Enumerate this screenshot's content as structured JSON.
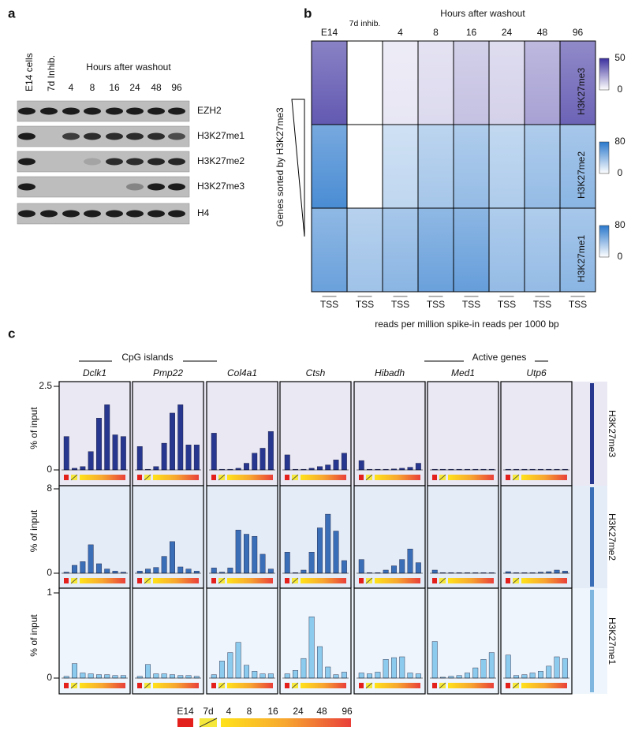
{
  "panel_a": {
    "label": "a",
    "lanes": [
      "E14 cells",
      "7d Inhib."
    ],
    "hours_label": "Hours after washout",
    "hours": [
      4,
      8,
      16,
      24,
      48,
      96
    ],
    "bands": [
      "EZH2",
      "H3K27me1",
      "H3K27me2",
      "H3K27me3",
      "H4"
    ]
  },
  "panel_b": {
    "label": "b",
    "columns": [
      "E14",
      "7d inhib."
    ],
    "hours_label": "Hours after washout",
    "hours": [
      4,
      8,
      16,
      24,
      48,
      96
    ],
    "rows": [
      {
        "name": "H3K27me3",
        "color": "#3b2f9e",
        "scale_ticks": [
          0,
          50
        ]
      },
      {
        "name": "H3K27me2",
        "color": "#2a78cc",
        "scale_ticks": [
          0,
          80
        ]
      },
      {
        "name": "H3K27me1",
        "color": "#2a78cc",
        "scale_ticks": [
          0,
          80
        ]
      }
    ],
    "tss_label": "TSS",
    "x_label": "reads per million spike-in reads per 1000 bp",
    "sort_label": "Genes sorted by H3K27me3"
  },
  "panel_c": {
    "label": "c",
    "groups": [
      "CpG islands",
      "Active genes"
    ],
    "genes": [
      "Dclk1",
      "Pmp22",
      "Col4a1",
      "Ctsh",
      "Hibadh",
      "Med1",
      "Utp6"
    ],
    "legend": [
      "E14",
      "7d",
      "4",
      "8",
      "16",
      "24",
      "48",
      "96"
    ]
  },
  "chart_data": [
    {
      "type": "bar",
      "title": "H3K27me3",
      "ylabel": "% of input",
      "ylim": [
        0,
        2.5
      ],
      "yticks": [
        0,
        2.5
      ],
      "color": "#27378f",
      "background": "#e9e8f3",
      "strip_color": "#27378f",
      "values": [
        [
          1.0,
          0.05,
          0.1,
          0.55,
          1.55,
          1.95,
          1.05,
          1.0
        ],
        [
          0.7,
          0.02,
          0.1,
          0.8,
          1.7,
          1.95,
          0.75,
          0.75
        ],
        [
          1.1,
          0.02,
          0.02,
          0.05,
          0.2,
          0.5,
          0.65,
          1.15
        ],
        [
          0.45,
          0.02,
          0.02,
          0.05,
          0.1,
          0.15,
          0.3,
          0.5
        ],
        [
          0.28,
          0.02,
          0.02,
          0.02,
          0.03,
          0.05,
          0.08,
          0.2
        ],
        [
          0.02,
          0.02,
          0.02,
          0.02,
          0.02,
          0.02,
          0.02,
          0.02
        ],
        [
          0.02,
          0.02,
          0.02,
          0.02,
          0.02,
          0.02,
          0.02,
          0.02
        ]
      ]
    },
    {
      "type": "bar",
      "title": "H3K27me2",
      "ylabel": "% of input",
      "ylim": [
        0,
        8
      ],
      "yticks": [
        0,
        8
      ],
      "color": "#3a6fb8",
      "background": "#e4ecf7",
      "strip_color": "#3a6fb8",
      "values": [
        [
          0.1,
          0.75,
          1.1,
          2.7,
          0.9,
          0.4,
          0.2,
          0.1
        ],
        [
          0.2,
          0.4,
          0.55,
          1.6,
          3.0,
          0.6,
          0.4,
          0.2
        ],
        [
          0.5,
          0.1,
          0.5,
          4.1,
          3.7,
          3.5,
          1.8,
          0.4
        ],
        [
          2.0,
          0.05,
          0.3,
          2.0,
          4.3,
          5.6,
          4.0,
          1.2
        ],
        [
          1.3,
          0.05,
          0.05,
          0.3,
          0.7,
          1.3,
          2.3,
          1.0
        ],
        [
          0.3,
          0.05,
          0.05,
          0.05,
          0.05,
          0.05,
          0.05,
          0.05
        ],
        [
          0.15,
          0.05,
          0.05,
          0.05,
          0.1,
          0.15,
          0.3,
          0.2
        ]
      ]
    },
    {
      "type": "bar",
      "title": "H3K27me1",
      "ylabel": "% of input",
      "ylim": [
        0,
        1
      ],
      "yticks": [
        0,
        1
      ],
      "color": "#8ccbed",
      "background": "#eef5fc",
      "strip_color": "#7fb6e0",
      "values": [
        [
          0.02,
          0.17,
          0.06,
          0.05,
          0.04,
          0.04,
          0.03,
          0.03
        ],
        [
          0.02,
          0.16,
          0.05,
          0.05,
          0.04,
          0.03,
          0.03,
          0.02
        ],
        [
          0.04,
          0.2,
          0.3,
          0.42,
          0.15,
          0.08,
          0.05,
          0.05
        ],
        [
          0.05,
          0.09,
          0.23,
          0.72,
          0.37,
          0.13,
          0.04,
          0.07
        ],
        [
          0.06,
          0.05,
          0.07,
          0.22,
          0.24,
          0.25,
          0.06,
          0.05
        ],
        [
          0.43,
          0.01,
          0.02,
          0.03,
          0.06,
          0.12,
          0.22,
          0.3
        ],
        [
          0.27,
          0.03,
          0.04,
          0.06,
          0.08,
          0.14,
          0.25,
          0.23
        ]
      ]
    }
  ]
}
